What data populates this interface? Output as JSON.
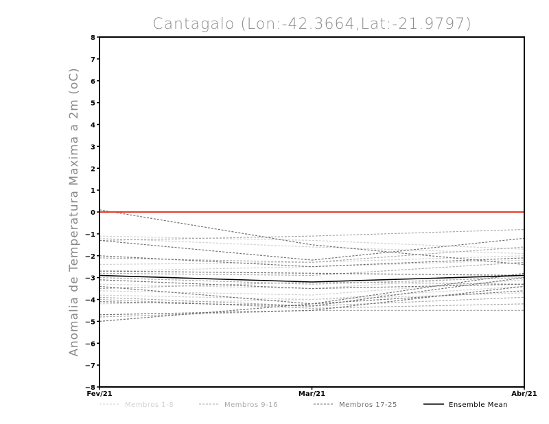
{
  "chart_data": {
    "type": "line",
    "title": "Cantagalo (Lon:-42.3664,Lat:-21.9797)",
    "xlabel": "",
    "ylabel": "Anomalia de Temperatura Maxima a 2m (oC)",
    "categories": [
      "Fev/21",
      "Mar/21",
      "Abr/21"
    ],
    "ylim": [
      -8,
      8
    ],
    "yticks": [
      -8,
      -7,
      -6,
      -5,
      -4,
      -3,
      -2,
      -1,
      0,
      1,
      2,
      3,
      4,
      5,
      6,
      7,
      8
    ],
    "grid": false,
    "legend_position": "bottom",
    "reference_line": {
      "y": 0,
      "color": "#e8392b"
    },
    "groups": [
      {
        "label": "Membros 1-8",
        "color": "#d0d0d0",
        "dashed": true
      },
      {
        "label": "Membros 9-16",
        "color": "#a8a8a8",
        "dashed": true
      },
      {
        "label": "Membros 17-25",
        "color": "#707070",
        "dashed": true
      },
      {
        "label": "Ensemble Mean",
        "color": "#000000",
        "dashed": false
      }
    ],
    "series": [
      {
        "group": 0,
        "values": [
          -1.1,
          -1.3,
          -1.7
        ]
      },
      {
        "group": 0,
        "values": [
          -1.2,
          -1.6,
          -1.9
        ]
      },
      {
        "group": 0,
        "values": [
          -2.4,
          -2.3,
          -2.0
        ]
      },
      {
        "group": 0,
        "values": [
          -2.7,
          -2.5,
          -2.2
        ]
      },
      {
        "group": 0,
        "values": [
          -3.3,
          -3.5,
          -2.9
        ]
      },
      {
        "group": 0,
        "values": [
          -3.6,
          -3.8,
          -3.1
        ]
      },
      {
        "group": 0,
        "values": [
          -3.8,
          -4.0,
          -3.4
        ]
      },
      {
        "group": 0,
        "values": [
          -4.2,
          -4.0,
          -3.7
        ]
      },
      {
        "group": 1,
        "values": [
          -1.3,
          -1.1,
          -0.8
        ]
      },
      {
        "group": 1,
        "values": [
          -2.1,
          -2.3,
          -1.6
        ]
      },
      {
        "group": 1,
        "values": [
          -2.8,
          -2.9,
          -2.3
        ]
      },
      {
        "group": 1,
        "values": [
          -3.0,
          -3.3,
          -3.0
        ]
      },
      {
        "group": 1,
        "values": [
          -3.5,
          -3.2,
          -3.3
        ]
      },
      {
        "group": 1,
        "values": [
          -3.9,
          -4.3,
          -3.9
        ]
      },
      {
        "group": 1,
        "values": [
          -4.0,
          -4.4,
          -4.2
        ]
      },
      {
        "group": 1,
        "values": [
          -4.8,
          -4.5,
          -4.5
        ]
      },
      {
        "group": 2,
        "values": [
          0.1,
          -1.5,
          -2.4
        ]
      },
      {
        "group": 2,
        "values": [
          -1.3,
          -2.2,
          -1.2
        ]
      },
      {
        "group": 2,
        "values": [
          -2.0,
          -2.5,
          -2.1
        ]
      },
      {
        "group": 2,
        "values": [
          -2.7,
          -2.8,
          -2.9
        ]
      },
      {
        "group": 2,
        "values": [
          -3.1,
          -3.5,
          -3.3
        ]
      },
      {
        "group": 2,
        "values": [
          -3.4,
          -4.2,
          -3.6
        ]
      },
      {
        "group": 2,
        "values": [
          -4.1,
          -4.3,
          -3.0
        ]
      },
      {
        "group": 2,
        "values": [
          -4.7,
          -4.5,
          -3.4
        ]
      },
      {
        "group": 2,
        "values": [
          -5.0,
          -4.2,
          -2.8
        ]
      },
      {
        "group": 3,
        "values": [
          -2.9,
          -3.2,
          -2.9
        ]
      }
    ]
  }
}
